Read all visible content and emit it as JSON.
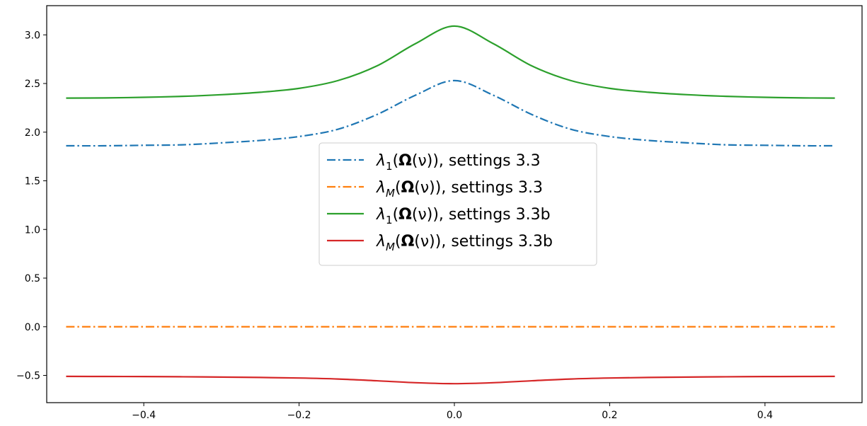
{
  "chart_data": {
    "type": "line",
    "title": "",
    "xlabel": "",
    "ylabel": "",
    "xlim": [
      -0.525,
      0.525
    ],
    "ylim": [
      -0.78,
      3.3
    ],
    "x_ticks": [
      -0.4,
      -0.2,
      0.0,
      0.2,
      0.4
    ],
    "x_tick_labels": [
      "−0.4",
      "−0.2",
      "0.0",
      "0.2",
      "0.4"
    ],
    "y_ticks": [
      -0.5,
      0.0,
      0.5,
      1.0,
      1.5,
      2.0,
      2.5,
      3.0
    ],
    "y_tick_labels": [
      "−0.5",
      "0.0",
      "0.5",
      "1.0",
      "1.5",
      "2.0",
      "2.5",
      "3.0"
    ],
    "grid": false,
    "legend_placement": "center",
    "x": [
      -0.5,
      -0.45,
      -0.4,
      -0.35,
      -0.3,
      -0.25,
      -0.2,
      -0.15,
      -0.1,
      -0.05,
      0.0,
      0.05,
      0.1,
      0.15,
      0.2,
      0.25,
      0.3,
      0.35,
      0.4,
      0.45,
      0.49
    ],
    "series": [
      {
        "name": "λ1(Ω(ν)), settings 3.3",
        "color": "#1f77b4",
        "style": "dashdot",
        "values": [
          1.86,
          1.86,
          1.865,
          1.87,
          1.89,
          1.915,
          1.955,
          2.03,
          2.18,
          2.38,
          2.53,
          2.38,
          2.18,
          2.03,
          1.955,
          1.915,
          1.89,
          1.87,
          1.865,
          1.86,
          1.86
        ]
      },
      {
        "name": "λM(Ω(ν)), settings 3.3",
        "color": "#ff7f0e",
        "style": "dashdot",
        "values": [
          0.0,
          0.0,
          0.0,
          0.0,
          0.0,
          0.0,
          0.0,
          0.0,
          0.0,
          0.0,
          0.0,
          0.0,
          0.0,
          0.0,
          0.0,
          0.0,
          0.0,
          0.0,
          0.0,
          0.0,
          0.0
        ]
      },
      {
        "name": "λ1(Ω(ν)), settings 3.3b",
        "color": "#2ca02c",
        "style": "solid",
        "values": [
          2.35,
          2.352,
          2.358,
          2.368,
          2.385,
          2.41,
          2.45,
          2.53,
          2.68,
          2.91,
          3.09,
          2.91,
          2.68,
          2.53,
          2.45,
          2.41,
          2.385,
          2.368,
          2.358,
          2.352,
          2.35
        ]
      },
      {
        "name": "λM(Ω(ν)), settings 3.3b",
        "color": "#d62728",
        "style": "solid",
        "values": [
          -0.51,
          -0.511,
          -0.512,
          -0.514,
          -0.517,
          -0.521,
          -0.527,
          -0.537,
          -0.555,
          -0.575,
          -0.585,
          -0.575,
          -0.555,
          -0.537,
          -0.527,
          -0.521,
          -0.517,
          -0.514,
          -0.512,
          -0.511,
          -0.51
        ]
      }
    ],
    "legend": [
      {
        "lambda": "λ",
        "sub": "1",
        "open": "(",
        "omega": "Ω",
        "nu_part": "(ν)",
        "close": "), settings 3.3"
      },
      {
        "lambda": "λ",
        "sub": "M",
        "open": "(",
        "omega": "Ω",
        "nu_part": "(ν)",
        "close": "), settings 3.3"
      },
      {
        "lambda": "λ",
        "sub": "1",
        "open": "(",
        "omega": "Ω",
        "nu_part": "(ν)",
        "close": "), settings 3.3b"
      },
      {
        "lambda": "λ",
        "sub": "M",
        "open": "(",
        "omega": "Ω",
        "nu_part": "(ν)",
        "close": "), settings 3.3b"
      }
    ]
  }
}
